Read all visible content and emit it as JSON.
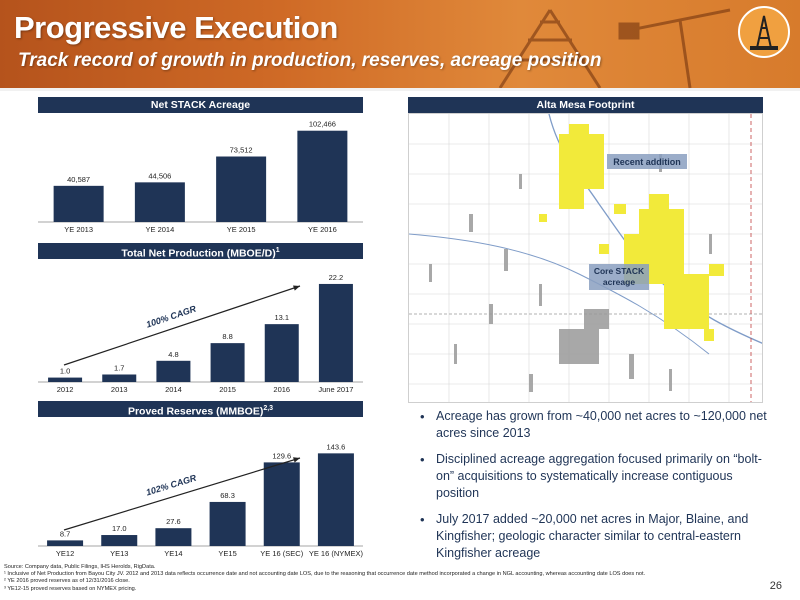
{
  "header": {
    "title": "Progressive Execution",
    "subtitle": "Track record of growth in production, reserves, acreage position"
  },
  "colors": {
    "navy": "#1f3456",
    "orange": "#cf6a26",
    "acreage_yellow": "#f2ea3a"
  },
  "chart_data": [
    {
      "type": "bar",
      "title": "Net STACK Acreage",
      "categories": [
        "YE 2013",
        "YE 2014",
        "YE 2015",
        "YE 2016"
      ],
      "values": [
        40587,
        44506,
        73512,
        102466
      ],
      "value_labels": [
        "40,587",
        "44,506",
        "73,512",
        "102,466"
      ],
      "ylim": [
        0,
        110000
      ]
    },
    {
      "type": "bar",
      "title": "Total Net Production (MBOE/D)",
      "title_sup": "1",
      "categories": [
        "2012",
        "2013",
        "2014",
        "2015",
        "2016",
        "June 2017"
      ],
      "values": [
        1.0,
        1.7,
        4.8,
        8.8,
        13.1,
        22.2
      ],
      "value_labels": [
        "1.0",
        "1.7",
        "4.8",
        "8.8",
        "13.1",
        "22.2"
      ],
      "annotation": "100% CAGR",
      "ylim": [
        0,
        24
      ]
    },
    {
      "type": "bar",
      "title": "Proved Reserves (MMBOE)",
      "title_sup": "2,3",
      "categories": [
        "YE12",
        "YE13",
        "YE14",
        "YE15",
        "YE 16 (SEC)",
        "YE 16 (NYMEX)"
      ],
      "values": [
        8.7,
        17.0,
        27.6,
        68.3,
        129.6,
        143.6
      ],
      "value_labels": [
        "8.7",
        "17.0",
        "27.6",
        "68.3",
        "129.6",
        "143.6"
      ],
      "annotation": "102% CAGR",
      "ylim": [
        0,
        155
      ]
    }
  ],
  "map": {
    "title": "Alta Mesa Footprint",
    "label_recent": "Recent addition",
    "label_core": "Core STACK acreage"
  },
  "bullets": [
    "Acreage has grown from ~40,000 net acres to ~120,000 net acres since 2013",
    "Disciplined acreage aggregation focused primarily on “bolt-on” acquisitions to systematically increase contiguous position",
    "July 2017 added ~20,000 net acres in Major, Blaine, and Kingfisher; geologic character similar to central-eastern Kingfisher acreage"
  ],
  "footnotes": {
    "source": "Source: Company data, Public Filings, IHS Herolds, RigData.",
    "n1": "¹ Inclusive of Net Production from Bayou City JV. 2012 and 2013 data reflects occurrence date and not accounting date LOS, due to the reasoning that occurrence date method incorporated a change in NGL accounting, whereas accounting date LOS does not.",
    "n2": "² YE 2016 proved reserves as of 12/31/2016 close.",
    "n3": "³ YE12-15 proved reserves based on NYMEX pricing."
  },
  "page_number": "26"
}
